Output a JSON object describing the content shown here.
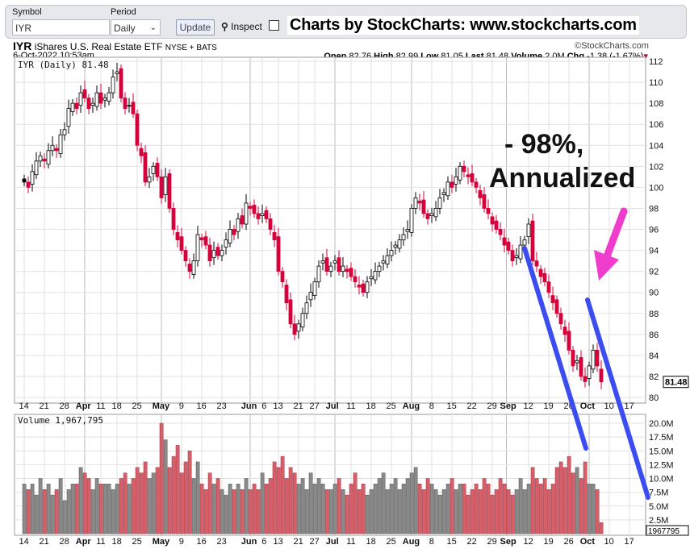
{
  "toolbar": {
    "symbol_label": "Symbol",
    "symbol_value": "IYR",
    "period_label": "Period",
    "period_value": "Daily",
    "update_label": "Update",
    "inspect_label": "Inspect",
    "brand_text": "Charts by StockCharts:  www.stockcharts.com"
  },
  "header": {
    "ticker": "IYR",
    "name": "iShares U.S. Real Estate ETF",
    "exchange": "NYSE + BATS",
    "copyright": "©StockCharts.com",
    "datetime": "6-Oct-2022 10:53am",
    "open_label": "Open",
    "open": "82.76",
    "high_label": "High",
    "high": "82.99",
    "low_label": "Low",
    "low": "81.05",
    "last_label": "Last",
    "last": "81.48",
    "volume_label": "Volume",
    "volume": "2.0M",
    "chg_label": "Chg",
    "chg": "-1.38 (-1.67%)"
  },
  "colors": {
    "up": "#000000",
    "down": "#d6003a",
    "vol_up": "#8a8a8a",
    "vol_down": "#d6606a",
    "annot_blue": "#3b4cf0",
    "annot_pink": "#f03ccc"
  },
  "chart_data": {
    "type": "candlestick",
    "price_legend": "IYR (Daily) 81.48",
    "volume_legend": "Volume 1,967,795",
    "last_price_tag": "81.48",
    "last_volume_tag": "1967795",
    "ylim": [
      80,
      112
    ],
    "yticks": [
      "80",
      "82",
      "84",
      "86",
      "88",
      "90",
      "92",
      "94",
      "96",
      "98",
      "100",
      "102",
      "104",
      "106",
      "108",
      "110",
      "112"
    ],
    "volume_ylim_millions": [
      0,
      20
    ],
    "volume_ticks": [
      "2.5M",
      "5.0M",
      "7.5M",
      "10.0M",
      "12.5M",
      "15.0M",
      "17.5M",
      "20.0M"
    ],
    "xticks": [
      {
        "i": 0,
        "t": "14"
      },
      {
        "i": 5,
        "t": "21"
      },
      {
        "i": 10,
        "t": "28"
      },
      {
        "i": 15,
        "t": "Apr",
        "b": 1
      },
      {
        "i": 19,
        "t": "11"
      },
      {
        "i": 23,
        "t": "18"
      },
      {
        "i": 28,
        "t": "25"
      },
      {
        "i": 34,
        "t": "May",
        "b": 1
      },
      {
        "i": 39,
        "t": "9"
      },
      {
        "i": 44,
        "t": "16"
      },
      {
        "i": 49,
        "t": "23"
      },
      {
        "i": 56,
        "t": "Jun",
        "b": 1
      },
      {
        "i": 59,
        "t": "6"
      },
      {
        "i": 63,
        "t": "13"
      },
      {
        "i": 68,
        "t": "21"
      },
      {
        "i": 72,
        "t": "27"
      },
      {
        "i": 77,
        "t": "Jul",
        "b": 1
      },
      {
        "i": 81,
        "t": "11"
      },
      {
        "i": 86,
        "t": "18"
      },
      {
        "i": 91,
        "t": "25"
      },
      {
        "i": 96,
        "t": "Aug",
        "b": 1
      },
      {
        "i": 101,
        "t": "8"
      },
      {
        "i": 106,
        "t": "15"
      },
      {
        "i": 111,
        "t": "22"
      },
      {
        "i": 116,
        "t": "29"
      },
      {
        "i": 119.5,
        "t": "Sep",
        "b": 1
      },
      {
        "i": 125,
        "t": "12"
      },
      {
        "i": 130,
        "t": "19"
      },
      {
        "i": 135,
        "t": "26"
      },
      {
        "i": 140,
        "t": "Oct",
        "b": 1
      },
      {
        "i": 145,
        "t": "10"
      },
      {
        "i": 150,
        "t": "17"
      }
    ],
    "closes": [
      100.5,
      100,
      101.5,
      102.5,
      103,
      102.5,
      103.5,
      104,
      103.5,
      105,
      105.5,
      107.5,
      108,
      107.5,
      109,
      108.5,
      107.5,
      108,
      109,
      108,
      108.5,
      109,
      110.5,
      111,
      108.5,
      107.5,
      107.8,
      107,
      104,
      103,
      100.5,
      101,
      102,
      101,
      99,
      101,
      98,
      96,
      95,
      94,
      93,
      92,
      93,
      95.5,
      95,
      94.5,
      93,
      94,
      93.5,
      94,
      95,
      96,
      95.5,
      97,
      96.5,
      98.5,
      98,
      97.5,
      97,
      97.5,
      97,
      96,
      95,
      92,
      91,
      89,
      87,
      86,
      87,
      88,
      89,
      90,
      91,
      92.5,
      93,
      92,
      92.5,
      93,
      92,
      92.5,
      92,
      91.5,
      91,
      90.5,
      90,
      91,
      91.5,
      92,
      92.5,
      93,
      93.5,
      94,
      94.5,
      95,
      95.5,
      96,
      98,
      99,
      98.5,
      97.5,
      97,
      97.5,
      98,
      99,
      99.5,
      100.5,
      100,
      101,
      102,
      101.5,
      101,
      100.5,
      100,
      99,
      98,
      97.5,
      96.5,
      96,
      95.5,
      94.5,
      94,
      93,
      93.5,
      94.5,
      95,
      96.5,
      93,
      92.5,
      91.5,
      91,
      90,
      89,
      88,
      87,
      86,
      84.5,
      83,
      83.5,
      82,
      81.5,
      83,
      84.5,
      83,
      81.48
    ],
    "volumes_millions": [
      9,
      8,
      9,
      7,
      10,
      8,
      9,
      7,
      8,
      10,
      6,
      8,
      9,
      9,
      12,
      11,
      10,
      8,
      10,
      9,
      9,
      9,
      8,
      9,
      10,
      11,
      9,
      10,
      12,
      11,
      13,
      10,
      11,
      12,
      20,
      17,
      12,
      14,
      16,
      11,
      13,
      15,
      10,
      13,
      9,
      8,
      11,
      9,
      10,
      8,
      7,
      9,
      8,
      9,
      8,
      10,
      8,
      9,
      8,
      11,
      9,
      10,
      13,
      12,
      14,
      10,
      12,
      11,
      9,
      10,
      8,
      11,
      9,
      10,
      9,
      8,
      8,
      9,
      10,
      8,
      7,
      9,
      11,
      8,
      9,
      7,
      8,
      9,
      10,
      11,
      8,
      9,
      10,
      8,
      9,
      10,
      11,
      12,
      9,
      8,
      10,
      9,
      8,
      7,
      8,
      9,
      10,
      8,
      9,
      9,
      7,
      8,
      9,
      8,
      10,
      9,
      7,
      8,
      10,
      9,
      8,
      7,
      8,
      10,
      8,
      9,
      12,
      10,
      9,
      10,
      8,
      9,
      12,
      13,
      12,
      14,
      11,
      12,
      10,
      13,
      9,
      9,
      8,
      2
    ]
  },
  "annotation": {
    "line1": "- 98%,",
    "line2": "Annualized"
  }
}
